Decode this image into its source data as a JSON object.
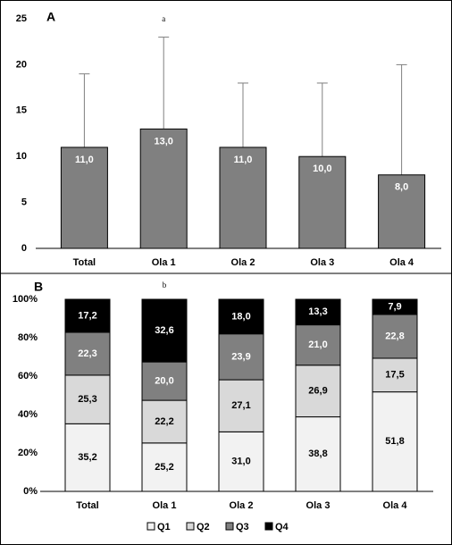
{
  "chart_data": [
    {
      "type": "bar",
      "panel_label": "A",
      "annotation": "a",
      "categories": [
        "Total",
        "Ola 1",
        "Ola 2",
        "Ola 3",
        "Ola 4"
      ],
      "values": [
        11,
        13,
        11,
        10,
        8
      ],
      "value_labels": [
        "11,0",
        "13,0",
        "11,0",
        "10,0",
        "8,0"
      ],
      "errors": [
        8,
        10,
        7,
        8,
        12
      ],
      "color": "#808080",
      "ylim": [
        0,
        25
      ],
      "yticks": [
        0,
        5,
        10,
        15,
        20,
        25
      ]
    },
    {
      "type": "stacked_bar",
      "panel_label": "B",
      "annotation": "b",
      "categories": [
        "Total",
        "Ola 1",
        "Ola 2",
        "Ola 3",
        "Ola 4"
      ],
      "series": [
        {
          "name": "Q1",
          "color": "#f2f2f2",
          "values": [
            35.2,
            25.2,
            31.0,
            38.8,
            51.8
          ],
          "value_labels": [
            "35,2",
            "25,2",
            "31,0",
            "38,8",
            "51,8"
          ]
        },
        {
          "name": "Q2",
          "color": "#d9d9d9",
          "values": [
            25.3,
            22.2,
            27.1,
            26.9,
            17.5
          ],
          "value_labels": [
            "25,3",
            "22,2",
            "27,1",
            "26,9",
            "17,5"
          ]
        },
        {
          "name": "Q3",
          "color": "#808080",
          "values": [
            22.3,
            20.0,
            23.9,
            21.0,
            22.8
          ],
          "value_labels": [
            "22,3",
            "20,0",
            "23,9",
            "21,0",
            "22,8"
          ]
        },
        {
          "name": "Q4",
          "color": "#000000",
          "values": [
            17.2,
            32.6,
            18.0,
            13.3,
            7.9
          ],
          "value_labels": [
            "17,2",
            "32,6",
            "18,0",
            "13,3",
            "7,9"
          ]
        }
      ],
      "ylim": [
        0,
        100
      ],
      "yticks": [
        {
          "value": 0,
          "label": "0%"
        },
        {
          "value": 20,
          "label": "20%"
        },
        {
          "value": 40,
          "label": "40%"
        },
        {
          "value": 60,
          "label": "60%"
        },
        {
          "value": 80,
          "label": "80%"
        },
        {
          "value": 100,
          "label": "100%"
        }
      ],
      "legend": "bottom"
    }
  ]
}
